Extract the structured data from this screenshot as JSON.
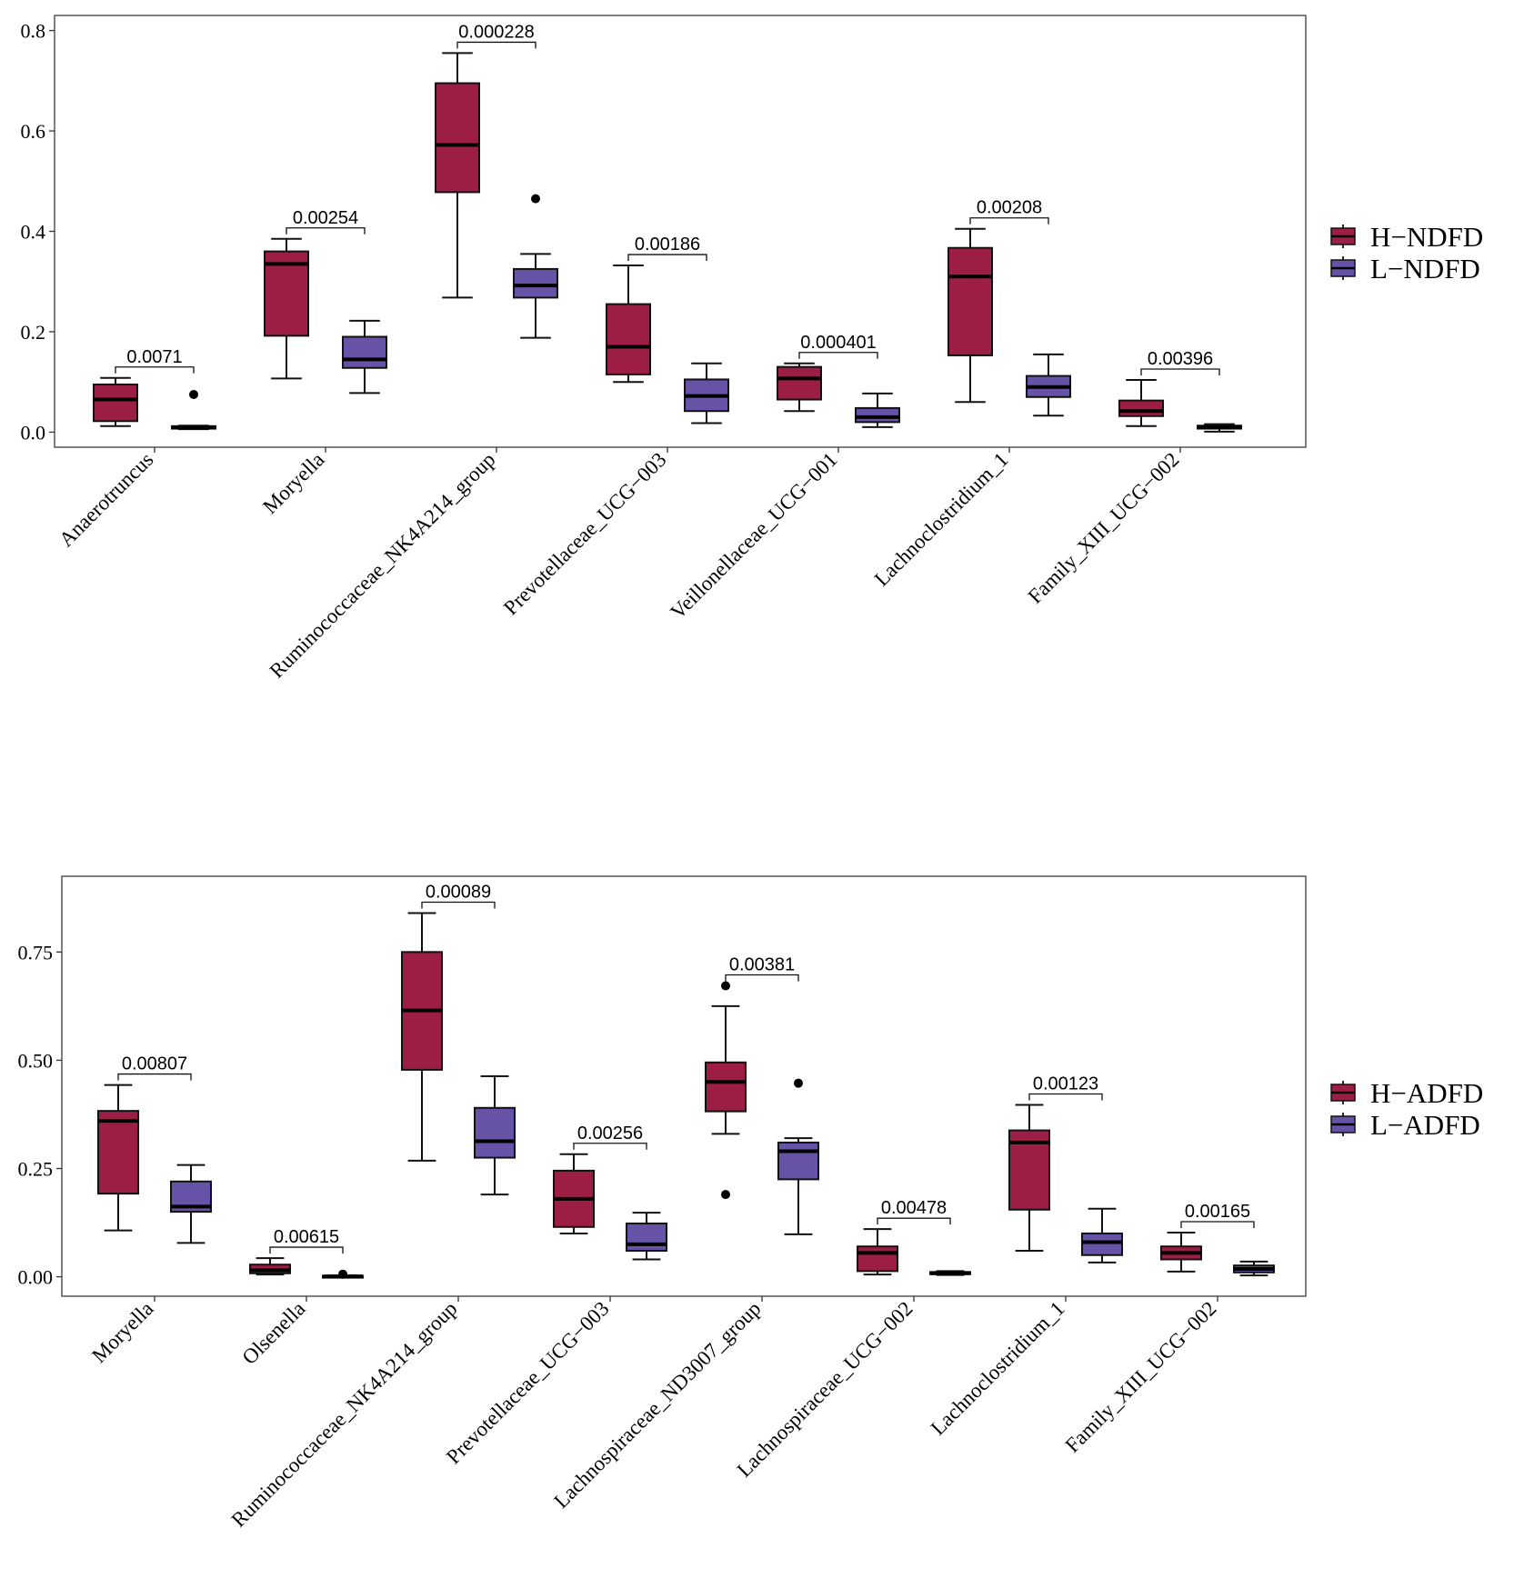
{
  "colors": {
    "h_group": "#9c1e45",
    "l_group": "#6652a6",
    "panel_border": "#555555"
  },
  "chart_data": [
    {
      "type": "boxplot",
      "title": "",
      "xlabel": "",
      "ylabel": "",
      "ylim": [
        -0.03,
        0.83
      ],
      "yticks": [
        0.0,
        0.2,
        0.4,
        0.6,
        0.8
      ],
      "ytick_labels": [
        "0.0",
        "0.2",
        "0.4",
        "0.6",
        "0.8"
      ],
      "legend": [
        "H−NDFD",
        "L−NDFD"
      ],
      "legend_position": "right",
      "categories": [
        "Anaerotruncus",
        "Moryella",
        "Ruminococcaceae_NK4A214_group",
        "Prevotellaceae_UCG−003",
        "Veillonellaceae_UCG−001",
        "Lachnoclostridium_1",
        "Family_XIII_UCG−002"
      ],
      "pvalues": [
        "0.0071",
        "0.00254",
        "0.000228",
        "0.00186",
        "0.000401",
        "0.00208",
        "0.00396"
      ],
      "series": [
        {
          "name": "H−NDFD",
          "boxes": [
            {
              "min": 0.012,
              "q1": 0.022,
              "median": 0.065,
              "q3": 0.095,
              "max": 0.108,
              "outliers": []
            },
            {
              "min": 0.107,
              "q1": 0.192,
              "median": 0.335,
              "q3": 0.36,
              "max": 0.385,
              "outliers": []
            },
            {
              "min": 0.268,
              "q1": 0.478,
              "median": 0.572,
              "q3": 0.695,
              "max": 0.755,
              "outliers": []
            },
            {
              "min": 0.1,
              "q1": 0.115,
              "median": 0.17,
              "q3": 0.255,
              "max": 0.332,
              "outliers": []
            },
            {
              "min": 0.042,
              "q1": 0.065,
              "median": 0.107,
              "q3": 0.13,
              "max": 0.137,
              "outliers": []
            },
            {
              "min": 0.06,
              "q1": 0.153,
              "median": 0.31,
              "q3": 0.367,
              "max": 0.405,
              "outliers": []
            },
            {
              "min": 0.012,
              "q1": 0.032,
              "median": 0.042,
              "q3": 0.063,
              "max": 0.104,
              "outliers": []
            }
          ]
        },
        {
          "name": "L−NDFD",
          "boxes": [
            {
              "min": 0.006,
              "q1": 0.007,
              "median": 0.009,
              "q3": 0.012,
              "max": 0.013,
              "outliers": [
                0.075
              ]
            },
            {
              "min": 0.078,
              "q1": 0.128,
              "median": 0.145,
              "q3": 0.19,
              "max": 0.222,
              "outliers": []
            },
            {
              "min": 0.188,
              "q1": 0.268,
              "median": 0.292,
              "q3": 0.325,
              "max": 0.355,
              "outliers": [
                0.465
              ]
            },
            {
              "min": 0.018,
              "q1": 0.042,
              "median": 0.072,
              "q3": 0.105,
              "max": 0.137,
              "outliers": []
            },
            {
              "min": 0.01,
              "q1": 0.02,
              "median": 0.03,
              "q3": 0.048,
              "max": 0.077,
              "outliers": []
            },
            {
              "min": 0.033,
              "q1": 0.07,
              "median": 0.09,
              "q3": 0.112,
              "max": 0.155,
              "outliers": []
            },
            {
              "min": 0.001,
              "q1": 0.007,
              "median": 0.01,
              "q3": 0.013,
              "max": 0.016,
              "outliers": []
            }
          ]
        }
      ]
    },
    {
      "type": "boxplot",
      "title": "",
      "xlabel": "",
      "ylabel": "",
      "ylim": [
        -0.045,
        0.925
      ],
      "yticks": [
        0.0,
        0.25,
        0.5,
        0.75
      ],
      "ytick_labels": [
        "0.00",
        "0.25",
        "0.50",
        "0.75"
      ],
      "legend": [
        "H−ADFD",
        "L−ADFD"
      ],
      "legend_position": "right",
      "categories": [
        "Moryella",
        "Olsenella",
        "Ruminococcaceae_NK4A214_group",
        "Prevotellaceae_UCG−003",
        "Lachnospiraceae_ND3007_group",
        "Lachnospiraceae_UCG−002",
        "Lachnoclostridium_1",
        "Family_XIII_UCG−002"
      ],
      "pvalues": [
        "0.00807",
        "0.00615",
        "0.00089",
        "0.00256",
        "0.00381",
        "0.00478",
        "0.00123",
        "0.00165"
      ],
      "series": [
        {
          "name": "H−ADFD",
          "boxes": [
            {
              "min": 0.107,
              "q1": 0.192,
              "median": 0.36,
              "q3": 0.383,
              "max": 0.443,
              "outliers": []
            },
            {
              "min": 0.005,
              "q1": 0.008,
              "median": 0.015,
              "q3": 0.028,
              "max": 0.043,
              "outliers": []
            },
            {
              "min": 0.268,
              "q1": 0.478,
              "median": 0.615,
              "q3": 0.75,
              "max": 0.84,
              "outliers": []
            },
            {
              "min": 0.1,
              "q1": 0.115,
              "median": 0.18,
              "q3": 0.245,
              "max": 0.283,
              "outliers": []
            },
            {
              "min": 0.33,
              "q1": 0.382,
              "median": 0.45,
              "q3": 0.495,
              "max": 0.625,
              "outliers": [
                0.19,
                0.672
              ]
            },
            {
              "min": 0.005,
              "q1": 0.013,
              "median": 0.055,
              "q3": 0.07,
              "max": 0.11,
              "outliers": []
            },
            {
              "min": 0.06,
              "q1": 0.155,
              "median": 0.31,
              "q3": 0.338,
              "max": 0.397,
              "outliers": []
            },
            {
              "min": 0.012,
              "q1": 0.04,
              "median": 0.055,
              "q3": 0.07,
              "max": 0.102,
              "outliers": []
            }
          ]
        },
        {
          "name": "L−ADFD",
          "boxes": [
            {
              "min": 0.078,
              "q1": 0.15,
              "median": 0.162,
              "q3": 0.22,
              "max": 0.258,
              "outliers": []
            },
            {
              "min": 0.0,
              "q1": 0.0,
              "median": 0.001,
              "q3": 0.002,
              "max": 0.003,
              "outliers": [
                0.006
              ]
            },
            {
              "min": 0.19,
              "q1": 0.275,
              "median": 0.313,
              "q3": 0.39,
              "max": 0.463,
              "outliers": []
            },
            {
              "min": 0.04,
              "q1": 0.06,
              "median": 0.075,
              "q3": 0.123,
              "max": 0.148,
              "outliers": []
            },
            {
              "min": 0.098,
              "q1": 0.225,
              "median": 0.29,
              "q3": 0.31,
              "max": 0.32,
              "outliers": [
                0.447
              ]
            },
            {
              "min": 0.004,
              "q1": 0.006,
              "median": 0.008,
              "q3": 0.011,
              "max": 0.013,
              "outliers": []
            },
            {
              "min": 0.033,
              "q1": 0.05,
              "median": 0.08,
              "q3": 0.1,
              "max": 0.157,
              "outliers": []
            },
            {
              "min": 0.003,
              "q1": 0.01,
              "median": 0.018,
              "q3": 0.026,
              "max": 0.035,
              "outliers": []
            }
          ]
        }
      ]
    }
  ]
}
